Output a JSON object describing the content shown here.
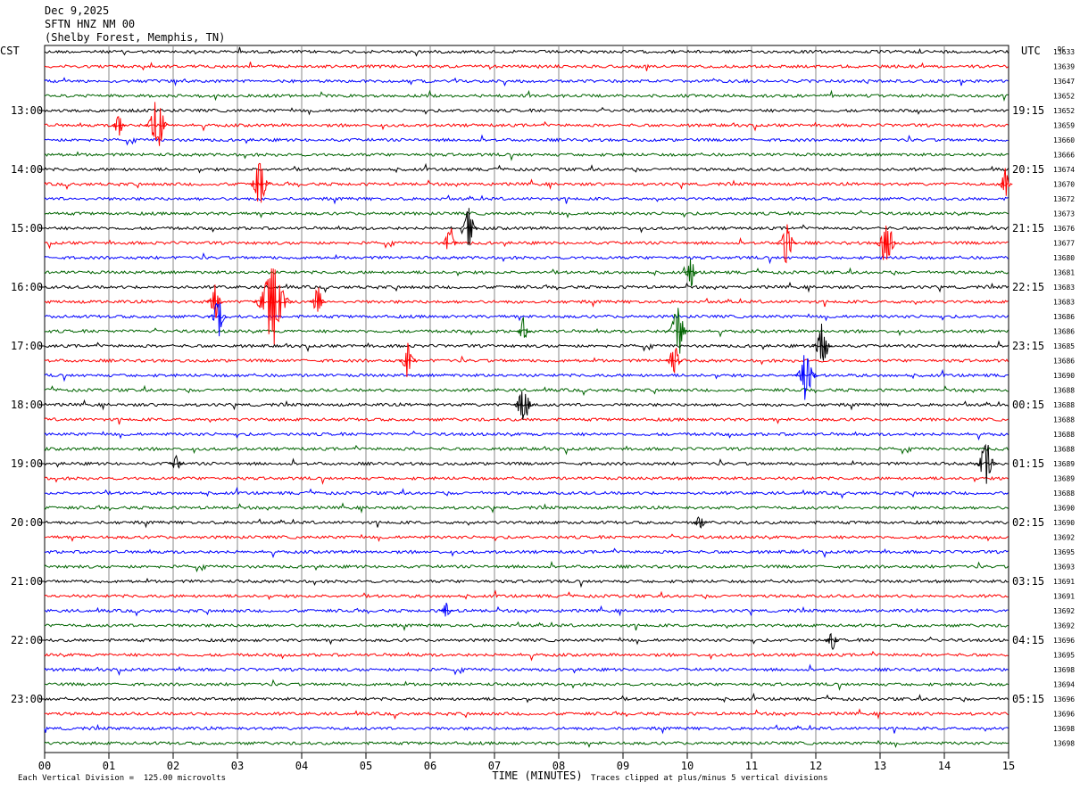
{
  "header": {
    "date": "Dec 9,2025",
    "station": "SFTN HNZ NM 00",
    "location": "(Shelby Forest, Memphis, TN)"
  },
  "footer": {
    "scale_note": "Each Vertical Division =  125.00 microvolts",
    "clip_note": "Traces clipped at plus/minus 5 vertical divisions"
  },
  "chart_data": {
    "type": "line",
    "subtype": "helicorder",
    "left_axis_label": "CST",
    "right_axis_label": "UTC",
    "right_corner_label": "DC",
    "xlabel": "TIME (MINUTES)",
    "x_ticks": [
      "00",
      "01",
      "02",
      "03",
      "04",
      "05",
      "06",
      "07",
      "08",
      "09",
      "10",
      "11",
      "12",
      "13",
      "14",
      "15"
    ],
    "xlim": [
      0,
      15
    ],
    "lines_per_hour": 4,
    "trace_colors": [
      "#000000",
      "#ff0000",
      "#0000ff",
      "#006400"
    ],
    "left_hour_labels": [
      "13:00",
      "14:00",
      "15:00",
      "16:00",
      "17:00",
      "18:00",
      "19:00",
      "20:00",
      "21:00",
      "22:00",
      "23:00"
    ],
    "left_hour_label_rows": [
      4,
      8,
      12,
      16,
      20,
      24,
      28,
      32,
      36,
      40,
      44
    ],
    "right_hour_labels": [
      "19:15",
      "20:15",
      "21:15",
      "22:15",
      "23:15",
      "00:15",
      "01:15",
      "02:15",
      "03:15",
      "04:15",
      "05:15"
    ],
    "dc_values": [
      "13633",
      "13639",
      "13647",
      "13652",
      "13652",
      "13659",
      "13660",
      "13666",
      "13674",
      "13670",
      "13672",
      "13673",
      "13676",
      "13677",
      "13680",
      "13681",
      "13683",
      "13683",
      "13686",
      "13686",
      "13685",
      "13686",
      "13690",
      "13688",
      "13688",
      "13688",
      "13688",
      "13688",
      "13689",
      "13689",
      "13688",
      "13690",
      "13690",
      "13692",
      "13695",
      "13693",
      "13691",
      "13691",
      "13692",
      "13692",
      "13696",
      "13695",
      "13698",
      "13694",
      "13696",
      "13696",
      "13698",
      "13698"
    ],
    "events": [
      {
        "row": 5,
        "minute": 1.75,
        "amp": 32
      },
      {
        "row": 5,
        "minute": 1.15,
        "amp": 14
      },
      {
        "row": 9,
        "minute": 3.35,
        "amp": 28
      },
      {
        "row": 9,
        "minute": 14.95,
        "amp": 18
      },
      {
        "row": 12,
        "minute": 6.6,
        "amp": 24
      },
      {
        "row": 13,
        "minute": 6.3,
        "amp": 22
      },
      {
        "row": 13,
        "minute": 11.55,
        "amp": 26
      },
      {
        "row": 13,
        "minute": 13.1,
        "amp": 30
      },
      {
        "row": 15,
        "minute": 10.05,
        "amp": 18
      },
      {
        "row": 17,
        "minute": 3.55,
        "amp": 52
      },
      {
        "row": 17,
        "minute": 2.65,
        "amp": 22
      },
      {
        "row": 17,
        "minute": 4.25,
        "amp": 20
      },
      {
        "row": 18,
        "minute": 2.7,
        "amp": 24
      },
      {
        "row": 19,
        "minute": 7.45,
        "amp": 16
      },
      {
        "row": 19,
        "minute": 9.85,
        "amp": 30
      },
      {
        "row": 20,
        "minute": 12.1,
        "amp": 26
      },
      {
        "row": 21,
        "minute": 5.65,
        "amp": 22
      },
      {
        "row": 21,
        "minute": 9.8,
        "amp": 22
      },
      {
        "row": 22,
        "minute": 11.85,
        "amp": 30
      },
      {
        "row": 24,
        "minute": 7.45,
        "amp": 26
      },
      {
        "row": 28,
        "minute": 14.65,
        "amp": 28
      },
      {
        "row": 28,
        "minute": 2.05,
        "amp": 10
      },
      {
        "row": 32,
        "minute": 10.2,
        "amp": 10
      },
      {
        "row": 38,
        "minute": 6.25,
        "amp": 10
      },
      {
        "row": 40,
        "minute": 12.25,
        "amp": 12
      }
    ]
  }
}
